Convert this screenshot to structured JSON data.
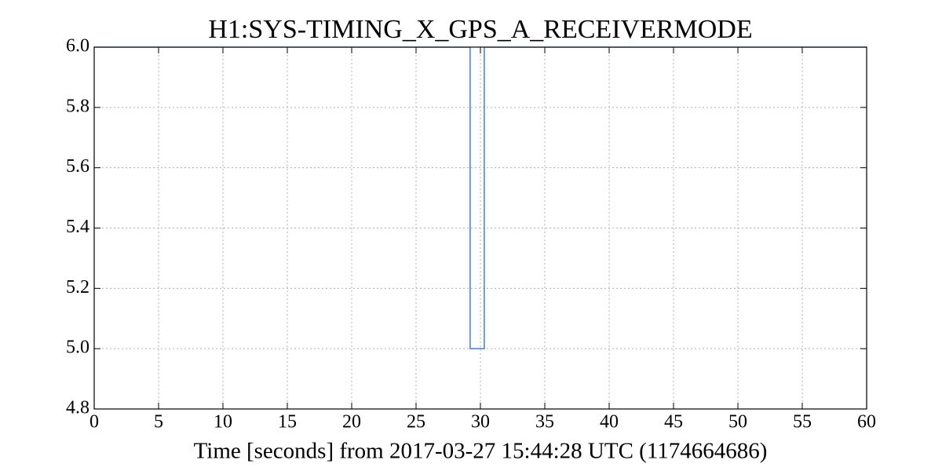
{
  "chart_data": {
    "type": "line",
    "title": "H1:SYS-TIMING_X_GPS_A_RECEIVERMODE",
    "x_label": "Time [seconds] from 2017-03-27 15:44:28 UTC (1174664686)",
    "series": [
      {
        "color": "#3e7fe0",
        "x": [
          0,
          29.2,
          29.2,
          30.3,
          30.3,
          60
        ],
        "values": [
          6,
          6,
          5,
          5,
          6,
          6
        ]
      }
    ],
    "xlim": [
      0,
      60
    ],
    "xticks": [
      0,
      5,
      10,
      15,
      20,
      25,
      30,
      35,
      40,
      45,
      50,
      55,
      60
    ],
    "ylim": [
      4.8,
      6
    ],
    "yticks": [
      4.8,
      {
        "value": 5,
        "label": "5.0"
      },
      5.2,
      5.4,
      5.6,
      5.8,
      {
        "value": 6,
        "label": "6.0"
      }
    ],
    "grid": true
  }
}
